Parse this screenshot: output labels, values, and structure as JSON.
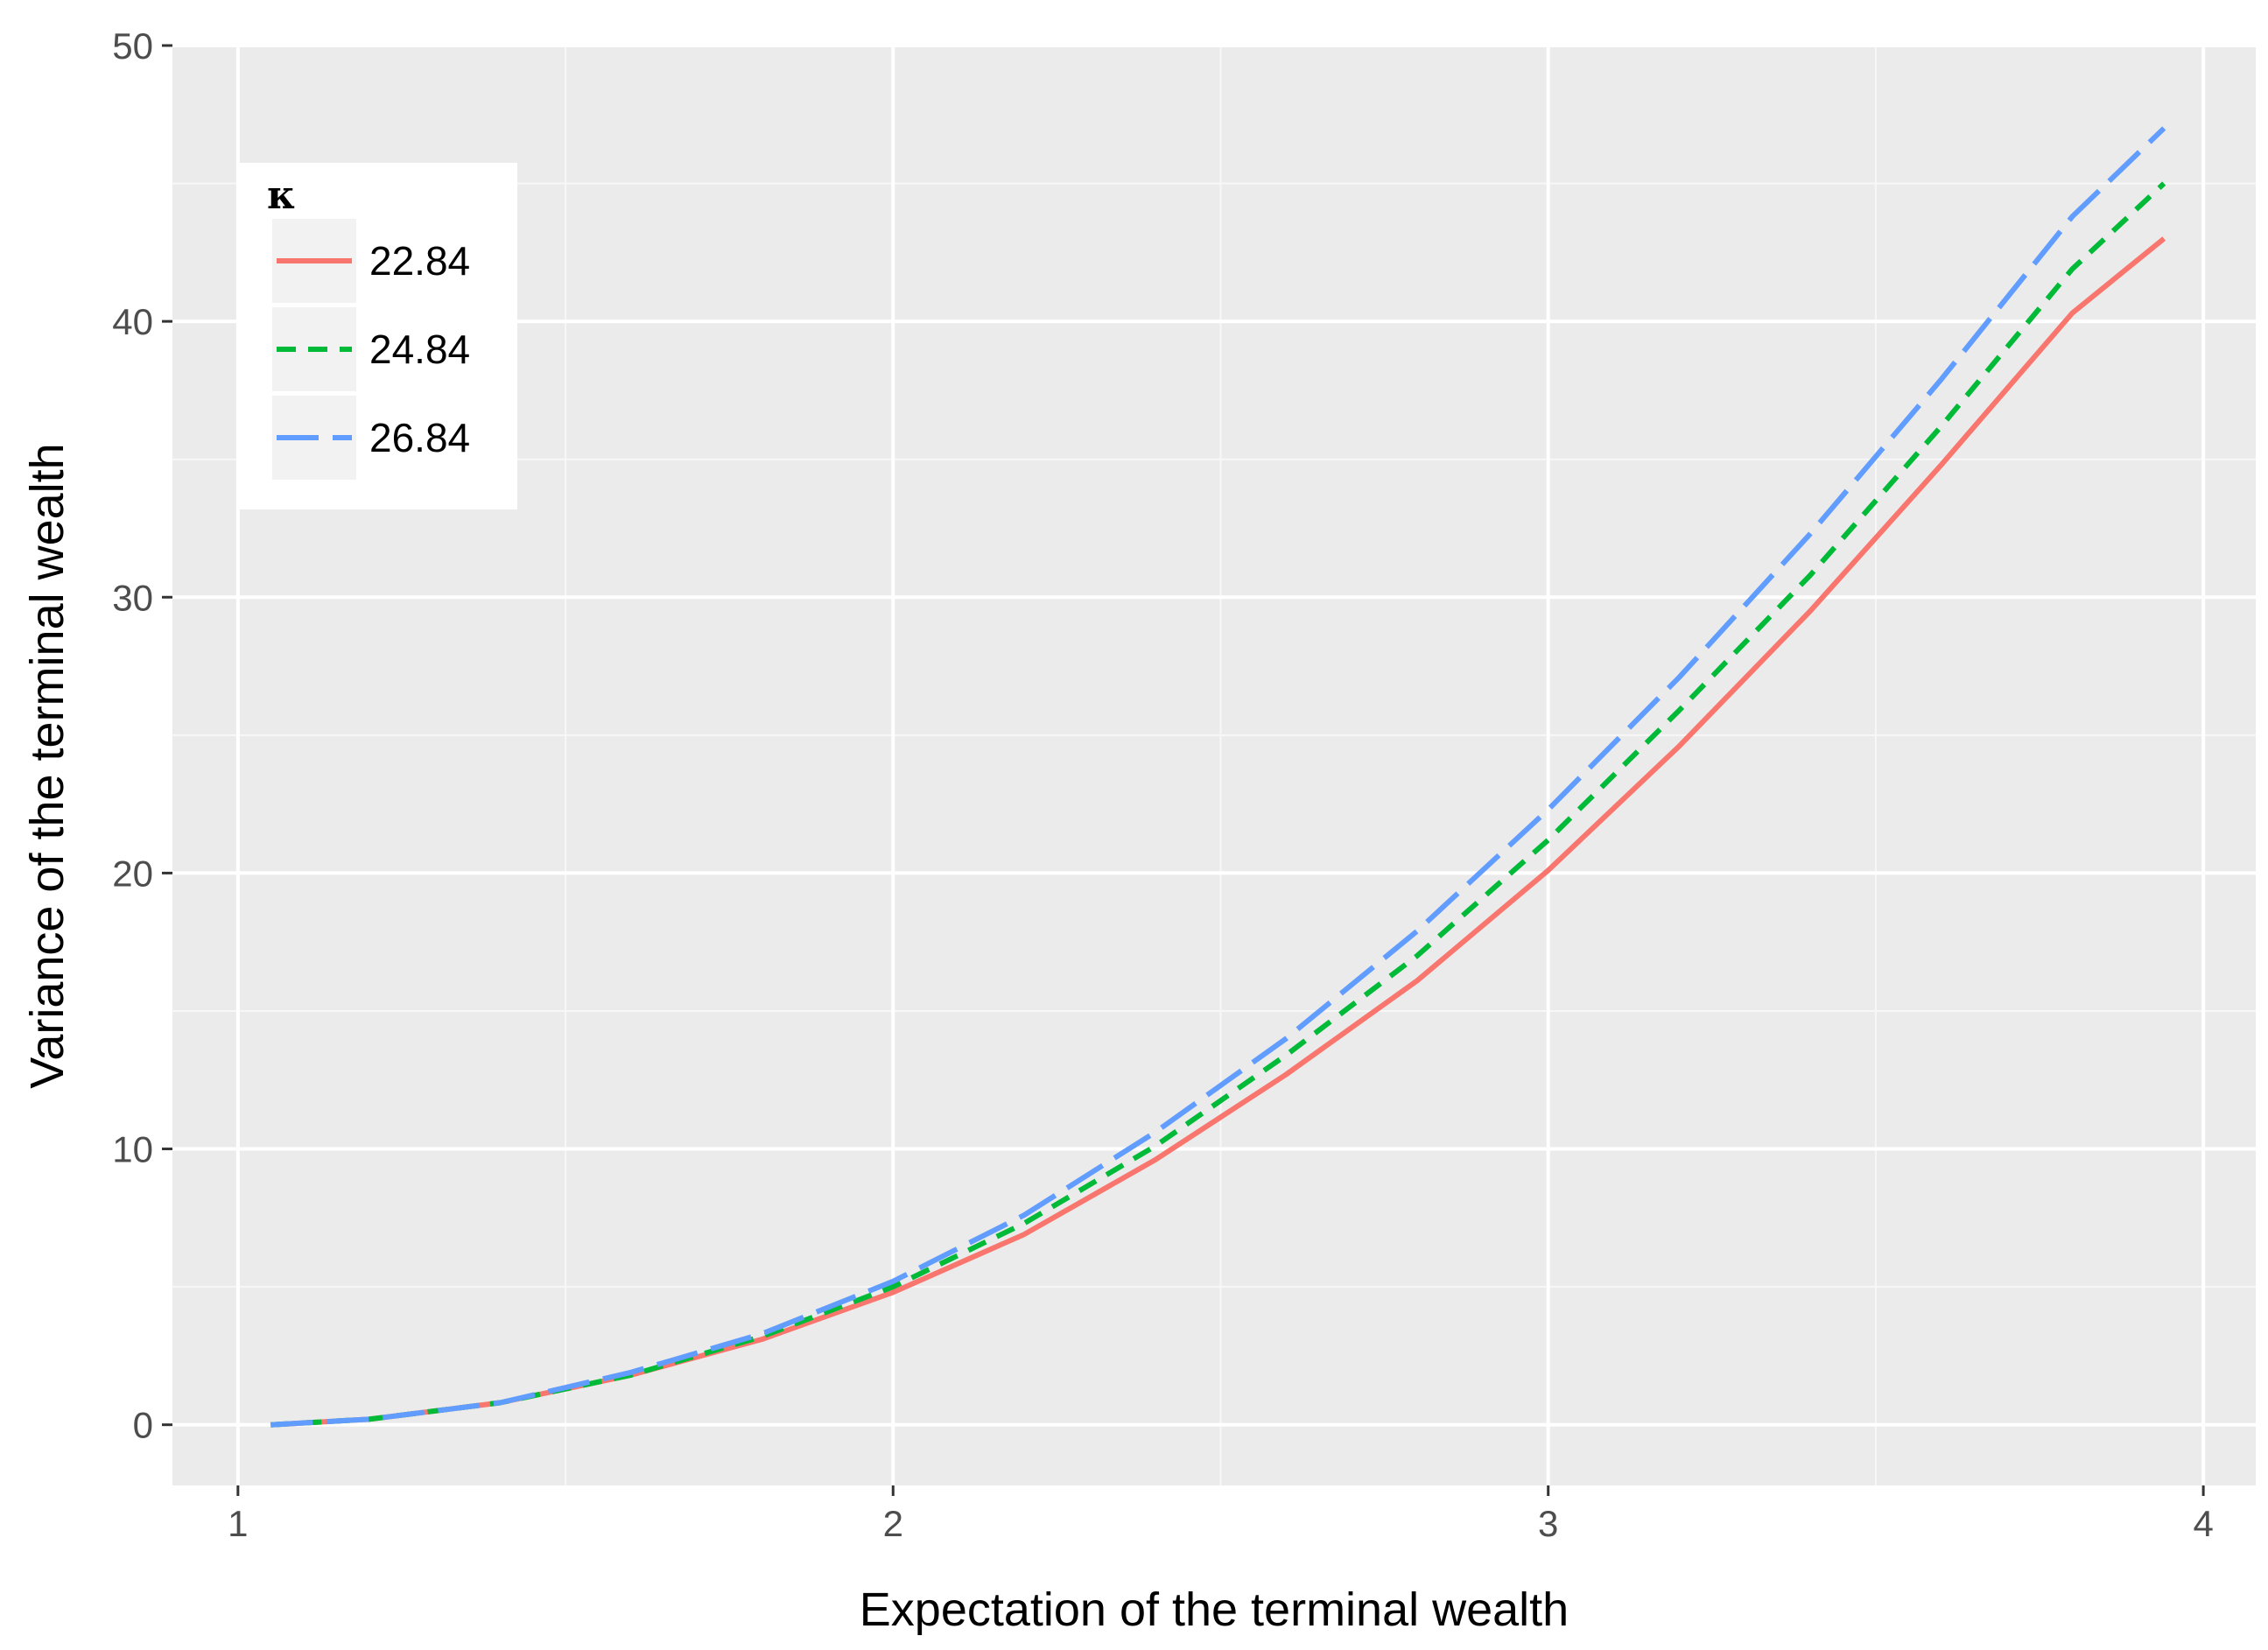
{
  "chart_data": {
    "type": "line",
    "title": "",
    "xlabel": "Expectation of the terminal wealth",
    "ylabel": "Variance of the terminal wealth",
    "xlim": [
      0.9,
      4.08
    ],
    "ylim": [
      -2.2,
      50
    ],
    "x_ticks": [
      1,
      2,
      3,
      4
    ],
    "y_ticks": [
      0,
      10,
      20,
      30,
      40,
      50
    ],
    "x_tick_labels": [
      "1",
      "2",
      "3",
      "4"
    ],
    "y_tick_labels": [
      "0",
      "10",
      "20",
      "30",
      "40",
      "50"
    ],
    "grid": true,
    "background": "#ebebeb",
    "legend": {
      "title": "κ",
      "placement": "top-left",
      "entries": [
        "22.84",
        "24.84",
        "26.84"
      ]
    },
    "x": [
      1.05,
      1.2,
      1.4,
      1.6,
      1.8,
      2.0,
      2.2,
      2.4,
      2.6,
      2.8,
      3.0,
      3.2,
      3.4,
      3.6,
      3.8,
      3.94
    ],
    "series": [
      {
        "name": "22.84",
        "color": "#f8766d",
        "dash": "solid",
        "values": [
          0.0,
          0.2,
          0.8,
          1.8,
          3.1,
          4.8,
          6.9,
          9.6,
          12.7,
          16.1,
          20.1,
          24.6,
          29.5,
          34.8,
          40.3,
          43.0
        ]
      },
      {
        "name": "24.84",
        "color": "#00ba38",
        "dash": "dashed",
        "values": [
          0.0,
          0.2,
          0.8,
          1.8,
          3.2,
          5.0,
          7.3,
          10.1,
          13.4,
          17.0,
          21.2,
          25.9,
          30.8,
          36.2,
          41.9,
          45.0
        ]
      },
      {
        "name": "26.84",
        "color": "#619cff",
        "dash": "longdash",
        "values": [
          0.0,
          0.2,
          0.8,
          1.9,
          3.3,
          5.2,
          7.6,
          10.6,
          14.0,
          17.9,
          22.3,
          27.1,
          32.3,
          37.9,
          43.8,
          47.0
        ]
      }
    ]
  }
}
